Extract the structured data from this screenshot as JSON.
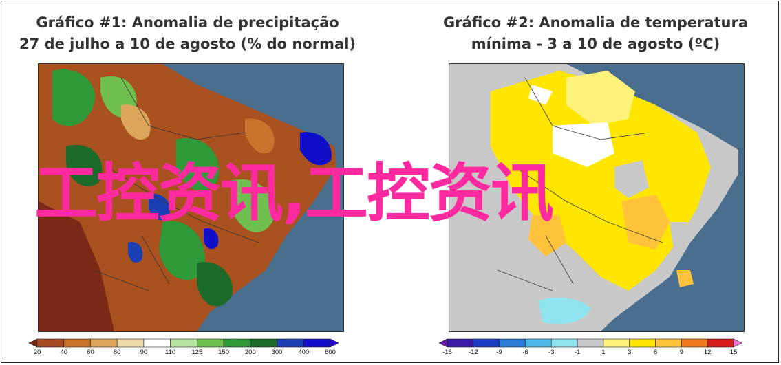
{
  "panels": [
    {
      "title_line1": "Gráfico #1: Anomalia de precipitação",
      "title_line2": "27 de julho a 10 de agosto (% do normal)",
      "colorbar": {
        "ticks": [
          "20",
          "40",
          "60",
          "80",
          "90",
          "110",
          "125",
          "150",
          "200",
          "300",
          "400",
          "600"
        ],
        "colors": [
          "#7a2a16",
          "#a44a22",
          "#c7742c",
          "#dca55a",
          "#efd9a6",
          "#ffffff",
          "#b9e3a3",
          "#6fbf4f",
          "#2e9a3a",
          "#1d6b2a",
          "#1a3fb4",
          "#1010c8",
          "#2a00d8"
        ]
      }
    },
    {
      "title_line1": "Gráfico #2: Anomalia de temperatura",
      "title_line2": "mínima - 3 a 10 de agosto (ºC)",
      "colorbar": {
        "ticks": [
          "-15",
          "-12",
          "-9",
          "-6",
          "-3",
          "-1",
          "1",
          "3",
          "6",
          "9",
          "12",
          "15"
        ],
        "colors": [
          "#6a19a8",
          "#3b1aa8",
          "#1b3cc4",
          "#2a7ad8",
          "#4fb8e8",
          "#8fe4f0",
          "#c8c8c8",
          "#fff27a",
          "#ffe600",
          "#ffc23a",
          "#f07a1e",
          "#d81e1e",
          "#f070d8"
        ]
      }
    }
  ],
  "watermark": "工控资讯,工控资讯",
  "colors": {
    "ocean": "#4a6e8e",
    "watermark": "#ff2aa0"
  }
}
